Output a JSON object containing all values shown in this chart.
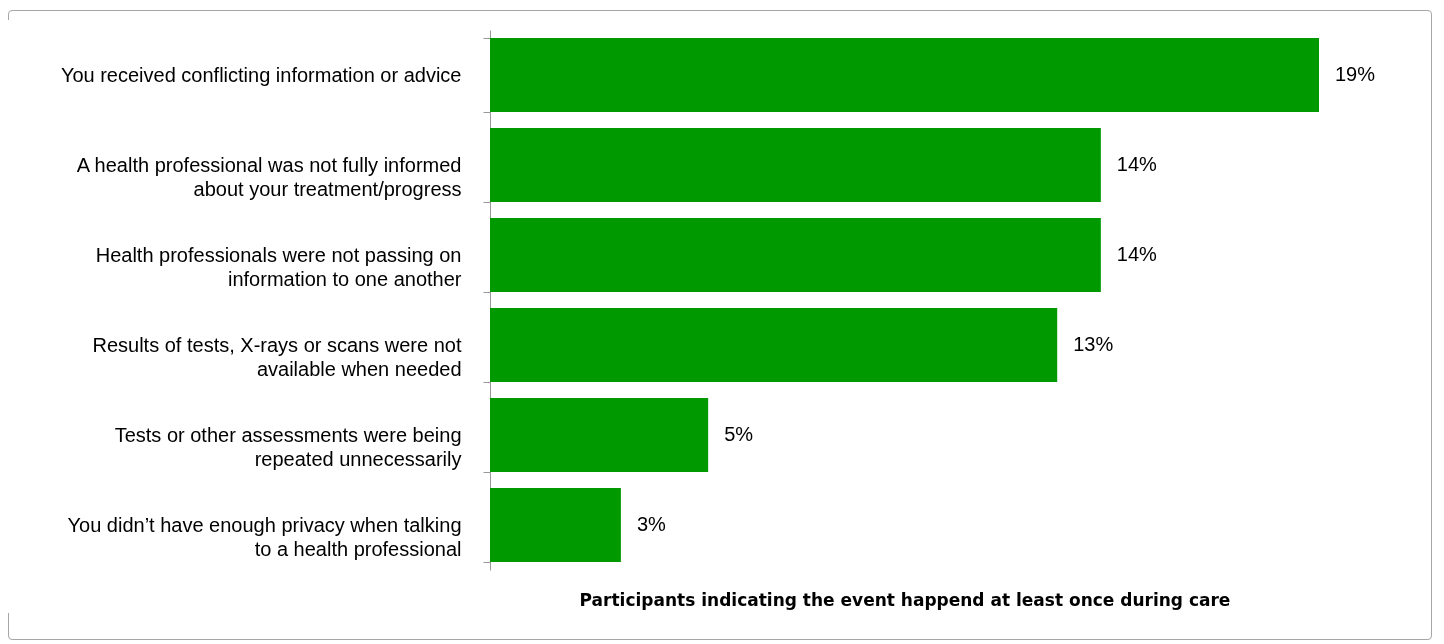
{
  "chart_data": {
    "type": "bar",
    "orientation": "horizontal",
    "xlabel": "Participants indicating the event happend at least once during care",
    "categories": [
      "You received conflicting information or advice",
      "A health professional was not fully informed about your treatment/progress",
      "Health professionals were not passing on information to one another",
      "Results of tests, X-rays or scans were not available when needed",
      "Tests or other assessments were being repeated unnecessarily",
      "You didn’t have enough privacy when talking to a health professional"
    ],
    "values": [
      19,
      14,
      14,
      13,
      5,
      3
    ],
    "value_labels": [
      "19%",
      "14%",
      "14%",
      "13%",
      "5%",
      "3%"
    ],
    "color": "#009900",
    "grid": false
  }
}
